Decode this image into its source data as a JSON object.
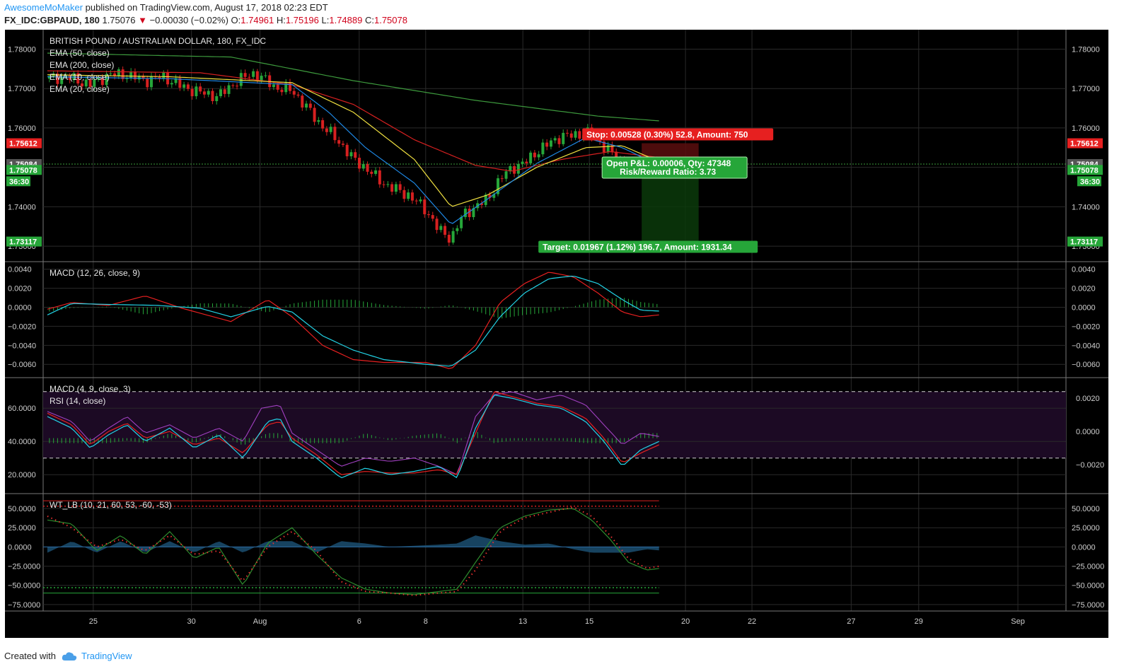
{
  "header": {
    "author": "AwesomeMoMaker",
    "published": "published on TradingView.com, August 17, 2018 02:23 EDT",
    "symbol": "FX_IDC:GBPAUD, 180",
    "last": "1.75076",
    "arrow": "▼",
    "change": "−0.00030 (−0.02%)",
    "o_label": "O:",
    "o_val": "1.74961",
    "h_label": "H:",
    "h_val": "1.75196",
    "l_label": "L:",
    "l_val": "1.74889",
    "c_label": "C:",
    "c_val": "1.75078"
  },
  "footer": {
    "created_with": "Created with",
    "brand": "TradingView"
  },
  "colors": {
    "background": "#000000",
    "grid": "#2a2a2a",
    "up": "#26a639",
    "down": "#d62020",
    "ema50": "#d62020",
    "ema200": "#3d9a3d",
    "ema10": "#1e88e5",
    "ema20": "#f0e040",
    "macd": "#22d3e6",
    "signal": "#e62020",
    "rsi": "#a040c0",
    "wt1": "#2e8b2e",
    "wt2": "#e83030"
  },
  "chart_data": [
    {
      "type": "candlestick",
      "title": "BRITISH POUND / AUSTRALIAN DOLLAR, 180, FX_IDC",
      "legend": [
        "EMA (50, close)",
        "EMA (200, close)",
        "EMA (10, close)",
        "EMA (20, close)"
      ],
      "x_ticks": [
        "25",
        "30",
        "Aug",
        "6",
        "8",
        "13",
        "15",
        "20",
        "22",
        "27",
        "29",
        "Sep"
      ],
      "y_ticks": [
        "1.78000",
        "1.77000",
        "1.76000",
        "1.75000",
        "1.74000",
        "1.73000"
      ],
      "ylim": [
        1.7275,
        1.7835
      ],
      "price_path": [
        [
          0,
          1.7725
        ],
        [
          0.03,
          1.773
        ],
        [
          0.07,
          1.771
        ],
        [
          0.1,
          1.7735
        ],
        [
          0.13,
          1.7735
        ],
        [
          0.16,
          1.772
        ],
        [
          0.19,
          1.773
        ],
        [
          0.22,
          1.7705
        ],
        [
          0.25,
          1.769
        ],
        [
          0.28,
          1.768
        ],
        [
          0.31,
          1.772
        ],
        [
          0.34,
          1.774
        ],
        [
          0.37,
          1.7705
        ],
        [
          0.4,
          1.7695
        ],
        [
          0.42,
          1.766
        ],
        [
          0.44,
          1.762
        ],
        [
          0.46,
          1.759
        ],
        [
          0.48,
          1.756
        ],
        [
          0.5,
          1.752
        ],
        [
          0.52,
          1.75
        ],
        [
          0.54,
          1.747
        ],
        [
          0.56,
          1.745
        ],
        [
          0.59,
          1.743
        ],
        [
          0.62,
          1.739
        ],
        [
          0.64,
          1.734
        ],
        [
          0.66,
          1.732
        ],
        [
          0.68,
          1.738
        ],
        [
          0.7,
          1.74
        ],
        [
          0.72,
          1.742
        ],
        [
          0.74,
          1.747
        ],
        [
          0.76,
          1.75
        ],
        [
          0.78,
          1.751
        ],
        [
          0.8,
          1.754
        ],
        [
          0.82,
          1.756
        ],
        [
          0.84,
          1.758
        ],
        [
          0.86,
          1.758
        ],
        [
          0.88,
          1.759
        ],
        [
          0.9,
          1.757
        ],
        [
          0.92,
          1.754
        ],
        [
          0.94,
          1.751
        ],
        [
          0.97,
          1.7495
        ],
        [
          1.0,
          1.7508
        ]
      ],
      "ema200": [
        [
          0,
          1.779
        ],
        [
          0.3,
          1.778
        ],
        [
          0.5,
          1.772
        ],
        [
          0.7,
          1.767
        ],
        [
          0.9,
          1.763
        ],
        [
          1.0,
          1.7618
        ]
      ],
      "ema50": [
        [
          0,
          1.7745
        ],
        [
          0.25,
          1.774
        ],
        [
          0.4,
          1.771
        ],
        [
          0.5,
          1.766
        ],
        [
          0.6,
          1.757
        ],
        [
          0.7,
          1.7505
        ],
        [
          0.76,
          1.749
        ],
        [
          0.84,
          1.752
        ],
        [
          0.92,
          1.754
        ],
        [
          1.0,
          1.7525
        ]
      ],
      "ema20": [
        [
          0,
          1.7735
        ],
        [
          0.2,
          1.773
        ],
        [
          0.4,
          1.7715
        ],
        [
          0.5,
          1.764
        ],
        [
          0.6,
          1.752
        ],
        [
          0.66,
          1.74
        ],
        [
          0.72,
          1.743
        ],
        [
          0.8,
          1.75
        ],
        [
          0.88,
          1.755
        ],
        [
          0.94,
          1.7555
        ],
        [
          1.0,
          1.7515
        ]
      ],
      "ema10": [
        [
          0,
          1.773
        ],
        [
          0.2,
          1.7725
        ],
        [
          0.4,
          1.771
        ],
        [
          0.46,
          1.764
        ],
        [
          0.52,
          1.755
        ],
        [
          0.6,
          1.746
        ],
        [
          0.66,
          1.7355
        ],
        [
          0.72,
          1.742
        ],
        [
          0.8,
          1.751
        ],
        [
          0.88,
          1.7575
        ],
        [
          0.94,
          1.755
        ],
        [
          1.0,
          1.7505
        ]
      ],
      "price_labels": [
        {
          "text": "1.75612",
          "value": 1.75612,
          "color": "#e62020"
        },
        {
          "text": "1.75084",
          "value": 1.75084,
          "color": "#555555"
        },
        {
          "text": "1.75078",
          "value": 1.75078,
          "color": "#26a639"
        },
        {
          "text": "1.73117",
          "value": 1.73117,
          "color": "#26a639"
        }
      ],
      "countdown": "36:30",
      "position": {
        "stop_text": "Stop: 0.00528 (0.30%) 52.8, Amount: 750",
        "pnl_text": "Open P&L: 0.00006, Qty: 47348",
        "rr_text": "Risk/Reward Ratio: 3.73",
        "target_text": "Target: 0.01967 (1.12%) 196.7, Amount: 1931.34",
        "entry": 1.75084,
        "stop": 1.75612,
        "target": 1.73117
      }
    },
    {
      "type": "line",
      "title": "MACD (12, 26, close, 9)",
      "y_ticks": [
        "0.0040",
        "0.0020",
        "0.0000",
        "−0.0020",
        "−0.0040",
        "−0.0060"
      ],
      "ylim": [
        -0.0068,
        0.0042
      ],
      "macd": [
        [
          0,
          -0.0008
        ],
        [
          0.04,
          0.0004
        ],
        [
          0.1,
          0.0003
        ],
        [
          0.18,
          0.0002
        ],
        [
          0.25,
          -0.0001
        ],
        [
          0.3,
          -0.001
        ],
        [
          0.36,
          0.0001
        ],
        [
          0.4,
          -0.0005
        ],
        [
          0.45,
          -0.003
        ],
        [
          0.5,
          -0.0045
        ],
        [
          0.55,
          -0.0055
        ],
        [
          0.62,
          -0.006
        ],
        [
          0.66,
          -0.0062
        ],
        [
          0.7,
          -0.0045
        ],
        [
          0.74,
          -0.001
        ],
        [
          0.78,
          0.0015
        ],
        [
          0.82,
          0.003
        ],
        [
          0.86,
          0.0033
        ],
        [
          0.9,
          0.0025
        ],
        [
          0.94,
          0.0008
        ],
        [
          0.97,
          -0.0003
        ],
        [
          1.0,
          -0.0004
        ]
      ],
      "signal": [
        [
          0,
          -0.0002
        ],
        [
          0.04,
          0.0005
        ],
        [
          0.1,
          0.0002
        ],
        [
          0.16,
          0.0012
        ],
        [
          0.22,
          -0.0001
        ],
        [
          0.3,
          -0.0015
        ],
        [
          0.36,
          0.0008
        ],
        [
          0.4,
          -0.001
        ],
        [
          0.45,
          -0.004
        ],
        [
          0.5,
          -0.0055
        ],
        [
          0.55,
          -0.0058
        ],
        [
          0.62,
          -0.0058
        ],
        [
          0.66,
          -0.0065
        ],
        [
          0.7,
          -0.004
        ],
        [
          0.74,
          0.0005
        ],
        [
          0.78,
          0.0025
        ],
        [
          0.82,
          0.0037
        ],
        [
          0.86,
          0.0032
        ],
        [
          0.9,
          0.0015
        ],
        [
          0.94,
          -0.0005
        ],
        [
          0.97,
          -0.001
        ],
        [
          1.0,
          -0.0008
        ]
      ]
    },
    {
      "type": "line",
      "title": "MACD (4, 9, close, 3)",
      "legend": [
        "MACD (4, 9, close, 3)",
        "RSI (14, close)"
      ],
      "y_ticks_left": [
        "60.0000",
        "40.0000",
        "20.0000"
      ],
      "y_ticks_right": [
        "0.0020",
        "0.0000",
        "−0.0020"
      ],
      "ylim": [
        12,
        75
      ],
      "rsi": [
        [
          0,
          58
        ],
        [
          0.04,
          52
        ],
        [
          0.07,
          40
        ],
        [
          0.1,
          48
        ],
        [
          0.13,
          55
        ],
        [
          0.16,
          45
        ],
        [
          0.2,
          50
        ],
        [
          0.24,
          42
        ],
        [
          0.28,
          48
        ],
        [
          0.32,
          40
        ],
        [
          0.35,
          60
        ],
        [
          0.38,
          62
        ],
        [
          0.4,
          45
        ],
        [
          0.44,
          35
        ],
        [
          0.48,
          25
        ],
        [
          0.52,
          30
        ],
        [
          0.56,
          28
        ],
        [
          0.6,
          30
        ],
        [
          0.64,
          25
        ],
        [
          0.67,
          20
        ],
        [
          0.7,
          55
        ],
        [
          0.73,
          68
        ],
        [
          0.76,
          70
        ],
        [
          0.8,
          65
        ],
        [
          0.84,
          68
        ],
        [
          0.88,
          62
        ],
        [
          0.91,
          50
        ],
        [
          0.94,
          38
        ],
        [
          0.97,
          45
        ],
        [
          1.0,
          43
        ]
      ],
      "macd_line": [
        [
          0,
          55
        ],
        [
          0.04,
          48
        ],
        [
          0.07,
          36
        ],
        [
          0.1,
          44
        ],
        [
          0.13,
          50
        ],
        [
          0.16,
          40
        ],
        [
          0.2,
          48
        ],
        [
          0.24,
          36
        ],
        [
          0.28,
          44
        ],
        [
          0.32,
          30
        ],
        [
          0.36,
          52
        ],
        [
          0.38,
          54
        ],
        [
          0.4,
          40
        ],
        [
          0.44,
          30
        ],
        [
          0.48,
          18
        ],
        [
          0.52,
          24
        ],
        [
          0.56,
          20
        ],
        [
          0.6,
          22
        ],
        [
          0.64,
          25
        ],
        [
          0.67,
          18
        ],
        [
          0.7,
          48
        ],
        [
          0.73,
          68
        ],
        [
          0.76,
          66
        ],
        [
          0.8,
          62
        ],
        [
          0.84,
          60
        ],
        [
          0.88,
          52
        ],
        [
          0.91,
          40
        ],
        [
          0.94,
          25
        ],
        [
          0.97,
          35
        ],
        [
          1.0,
          40
        ]
      ],
      "signal_line": [
        [
          0,
          57
        ],
        [
          0.04,
          50
        ],
        [
          0.07,
          38
        ],
        [
          0.1,
          46
        ],
        [
          0.13,
          51
        ],
        [
          0.16,
          42
        ],
        [
          0.2,
          46
        ],
        [
          0.24,
          38
        ],
        [
          0.28,
          42
        ],
        [
          0.32,
          33
        ],
        [
          0.36,
          50
        ],
        [
          0.38,
          52
        ],
        [
          0.4,
          42
        ],
        [
          0.44,
          32
        ],
        [
          0.48,
          20
        ],
        [
          0.52,
          22
        ],
        [
          0.56,
          21
        ],
        [
          0.6,
          21
        ],
        [
          0.64,
          23
        ],
        [
          0.67,
          20
        ],
        [
          0.7,
          45
        ],
        [
          0.73,
          70
        ],
        [
          0.76,
          67
        ],
        [
          0.8,
          63
        ],
        [
          0.84,
          61
        ],
        [
          0.88,
          54
        ],
        [
          0.91,
          42
        ],
        [
          0.94,
          27
        ],
        [
          0.97,
          33
        ],
        [
          1.0,
          38
        ]
      ],
      "bands": [
        70,
        30
      ]
    },
    {
      "type": "line",
      "title": "WT_LB (10, 21, 60, 53, -60, -53)",
      "y_ticks": [
        "50.0000",
        "25.0000",
        "0.0000",
        "−25.0000",
        "−50.0000",
        "−75.0000"
      ],
      "ylim": [
        -76,
        62
      ],
      "wt1": [
        [
          0,
          35
        ],
        [
          0.04,
          30
        ],
        [
          0.08,
          -5
        ],
        [
          0.12,
          15
        ],
        [
          0.16,
          -10
        ],
        [
          0.2,
          20
        ],
        [
          0.24,
          -15
        ],
        [
          0.28,
          0
        ],
        [
          0.32,
          -50
        ],
        [
          0.36,
          5
        ],
        [
          0.4,
          25
        ],
        [
          0.44,
          -10
        ],
        [
          0.48,
          -40
        ],
        [
          0.52,
          -55
        ],
        [
          0.56,
          -60
        ],
        [
          0.6,
          -62
        ],
        [
          0.64,
          -58
        ],
        [
          0.67,
          -55
        ],
        [
          0.7,
          -20
        ],
        [
          0.74,
          25
        ],
        [
          0.78,
          40
        ],
        [
          0.82,
          48
        ],
        [
          0.86,
          50
        ],
        [
          0.89,
          35
        ],
        [
          0.92,
          10
        ],
        [
          0.95,
          -20
        ],
        [
          0.98,
          -30
        ],
        [
          1.0,
          -28
        ]
      ],
      "wt2": [
        [
          0,
          40
        ],
        [
          0.04,
          25
        ],
        [
          0.08,
          0
        ],
        [
          0.12,
          10
        ],
        [
          0.16,
          -5
        ],
        [
          0.2,
          15
        ],
        [
          0.24,
          -10
        ],
        [
          0.28,
          -5
        ],
        [
          0.32,
          -45
        ],
        [
          0.36,
          0
        ],
        [
          0.4,
          20
        ],
        [
          0.44,
          -5
        ],
        [
          0.48,
          -45
        ],
        [
          0.52,
          -58
        ],
        [
          0.56,
          -60
        ],
        [
          0.6,
          -63
        ],
        [
          0.64,
          -60
        ],
        [
          0.67,
          -58
        ],
        [
          0.7,
          -30
        ],
        [
          0.74,
          20
        ],
        [
          0.78,
          38
        ],
        [
          0.82,
          45
        ],
        [
          0.86,
          52
        ],
        [
          0.89,
          40
        ],
        [
          0.92,
          15
        ],
        [
          0.95,
          -15
        ],
        [
          0.98,
          -28
        ],
        [
          1.0,
          -25
        ]
      ],
      "levels": [
        60,
        53,
        -53,
        -60
      ]
    }
  ]
}
